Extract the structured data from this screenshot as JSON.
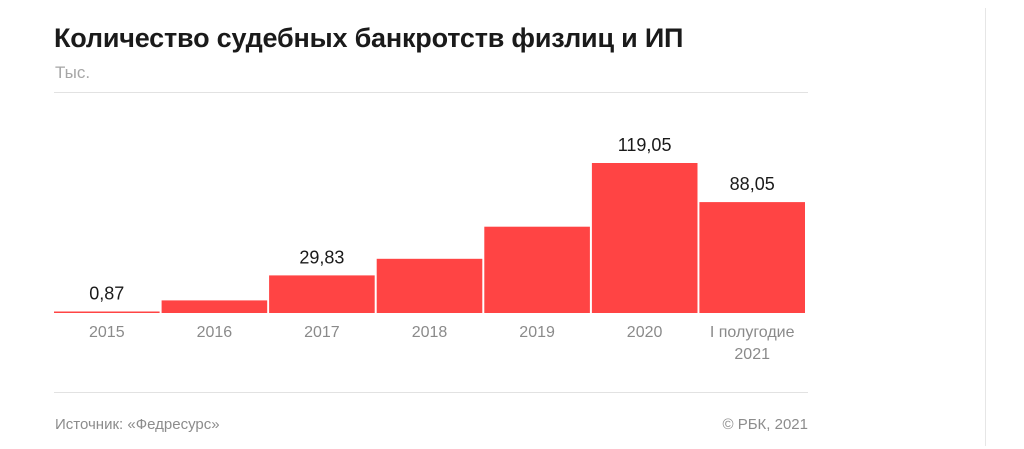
{
  "header": {
    "title": "Количество судебных банкротств физлиц и ИП",
    "unit": "Тыс."
  },
  "footer": {
    "source": "Источник: «Федресурс»",
    "copyright": "© РБК, 2021"
  },
  "colors": {
    "bar": "#ff4444",
    "value_label": "#1a1a1a",
    "tick_label": "#8a8a8a"
  },
  "chart_data": {
    "type": "bar",
    "title": "Количество судебных банкротств физлиц и ИП",
    "subtitle": "Тыс.",
    "categories": [
      "2015",
      "2016",
      "2017",
      "2018",
      "2019",
      "2020",
      "I полугодие 2021"
    ],
    "tick_labels": [
      [
        "2015"
      ],
      [
        "2016"
      ],
      [
        "2017"
      ],
      [
        "2018"
      ],
      [
        "2019"
      ],
      [
        "2020"
      ],
      [
        "I полугодие",
        "2021"
      ]
    ],
    "values": [
      0.87,
      10,
      29.83,
      43,
      68.5,
      119.05,
      88.05
    ],
    "value_labels": [
      "0,87",
      "",
      "29,83",
      "",
      "",
      "119,05",
      "88,05"
    ],
    "ylim": [
      0,
      119.05
    ],
    "xlabel": "",
    "ylabel": "",
    "grid": false,
    "legend": "none"
  }
}
